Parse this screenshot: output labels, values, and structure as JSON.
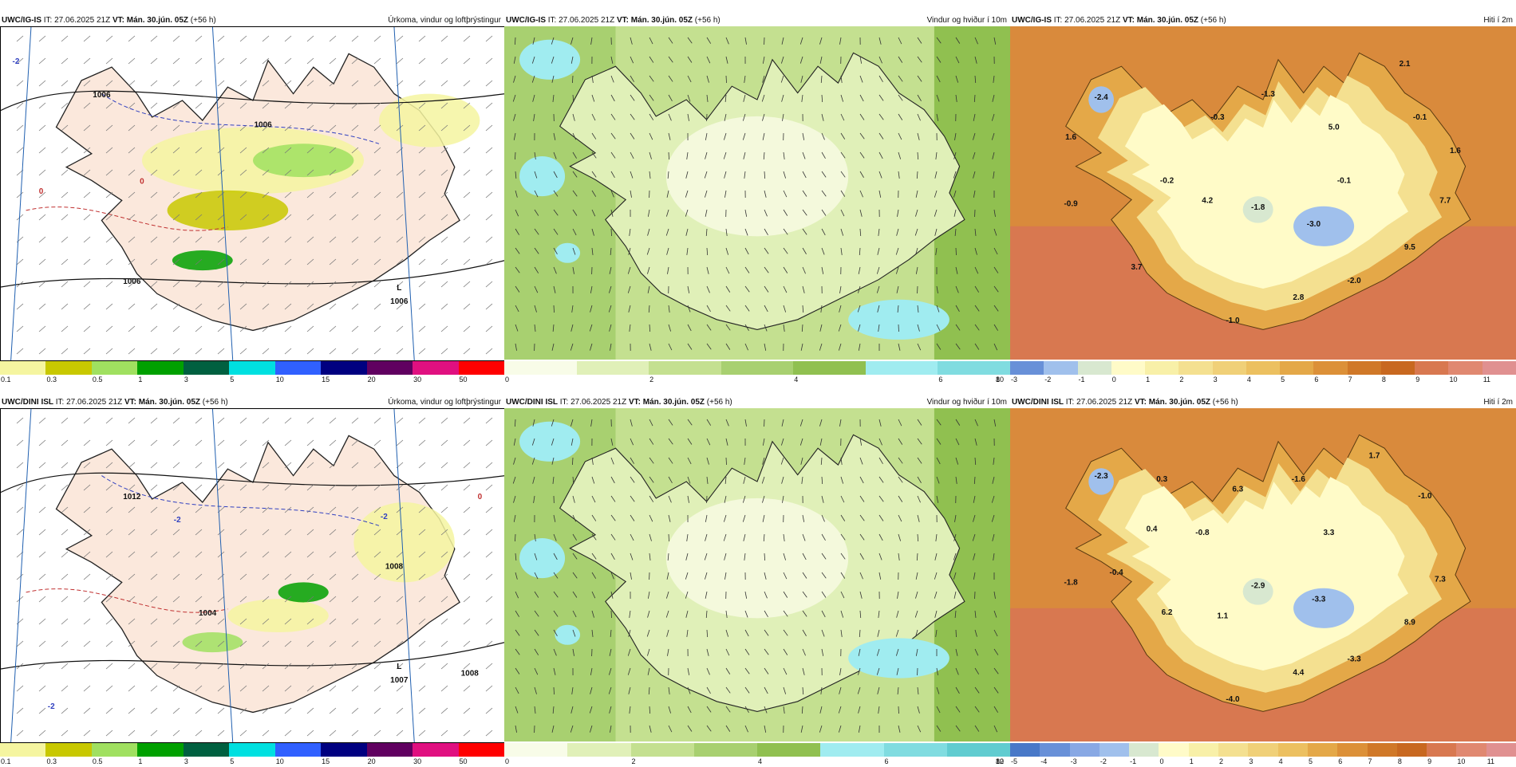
{
  "rows": [
    {
      "model": "UWC/IG-IS",
      "it": "IT: 27.06.2025 21Z",
      "vt_label": "VT:",
      "vt_value": "Mán. 30.jún. 05Z",
      "lead": "(+56 h)",
      "panels": [
        {
          "kind": "precip",
          "name": "Úrkoma, vindur og loftþrýstingur",
          "map_labels": [
            "1006",
            "1006",
            "1006",
            "L",
            "1006",
            "0",
            "0",
            "-2"
          ],
          "colorbar": [
            "#f5f5a0",
            "#c8c800",
            "#a0e060",
            "#00a000",
            "#006040",
            "#00e0e0",
            "#3060ff",
            "#000080",
            "#600060",
            "#e01080",
            "#ff0000"
          ],
          "ticks": [
            "0.1",
            "0.3",
            "0.5",
            "1",
            "3",
            "5",
            "10",
            "15",
            "20",
            "30",
            "50"
          ]
        },
        {
          "kind": "wind",
          "name": "Vindur og hviður í 10m",
          "colorbar": [
            "#f8fce8",
            "#e0f0b8",
            "#c4e090",
            "#a8d070",
            "#90c050",
            "#a0ecf0",
            "#80dce0"
          ],
          "ticks": [
            "0",
            "2",
            "4",
            "6",
            "8",
            "10"
          ]
        },
        {
          "kind": "temp",
          "name": "Hiti í 2m",
          "map_labels": [
            "2.1",
            "-2.4",
            "-1.3",
            "-0.3",
            "5.0",
            "-0.1",
            "1.6",
            "1.6",
            "-0.1",
            "-0.2",
            "4.2",
            "-1.8",
            "-0.9",
            "7.7",
            "-3.0",
            "9.5",
            "3.7",
            "-2.0",
            "2.8",
            "-1.0"
          ],
          "colorbar": [
            "#6890d8",
            "#a0c0ec",
            "#d8e8d0",
            "#fffbc8",
            "#f8f0a8",
            "#f4e090",
            "#f0d078",
            "#ecc060",
            "#e4a848",
            "#dc9038",
            "#d07828",
            "#c86820",
            "#d87850",
            "#e08870",
            "#e09090"
          ],
          "ticks": [
            "-3",
            "-2",
            "-1",
            "0",
            "1",
            "2",
            "3",
            "4",
            "5",
            "6",
            "7",
            "8",
            "9",
            "10",
            "11"
          ]
        }
      ]
    },
    {
      "model": "UWC/DINI ISL",
      "it": "IT: 27.06.2025 21Z",
      "vt_label": "VT:",
      "vt_value": "Mán. 30.jún. 05Z",
      "lead": "(+56 h)",
      "panels": [
        {
          "kind": "precip",
          "name": "Úrkoma, vindur og loftþrýstingur",
          "map_labels": [
            "1012",
            "-2",
            "-2",
            "1008",
            "1004",
            "L",
            "1007",
            "1008",
            "0",
            "-2"
          ],
          "colorbar": [
            "#f5f5a0",
            "#c8c800",
            "#a0e060",
            "#00a000",
            "#006040",
            "#00e0e0",
            "#3060ff",
            "#000080",
            "#600060",
            "#e01080",
            "#ff0000"
          ],
          "ticks": [
            "0.1",
            "0.3",
            "0.5",
            "1",
            "3",
            "5",
            "10",
            "15",
            "20",
            "30",
            "50"
          ]
        },
        {
          "kind": "wind",
          "name": "Vindur og hviður í 10m",
          "colorbar": [
            "#f8fce8",
            "#e0f0b8",
            "#c4e090",
            "#a8d070",
            "#90c050",
            "#a0ecf0",
            "#80dce0",
            "#60ccd0"
          ],
          "ticks": [
            "0",
            "2",
            "4",
            "6",
            "8",
            "10",
            "12"
          ]
        },
        {
          "kind": "temp",
          "name": "Hiti í 2m",
          "map_labels": [
            "-2.3",
            "0.3",
            "1.7",
            "6.3",
            "-1.6",
            "-1.0",
            "0.4",
            "-0.8",
            "3.3",
            "-0.4",
            "-1.8",
            "7.3",
            "6.2",
            "1.1",
            "-2.9",
            "-3.3",
            "8.9",
            "4.4",
            "-3.3",
            "-4.0"
          ],
          "colorbar": [
            "#4878c8",
            "#6890d8",
            "#88a8e4",
            "#a0c0ec",
            "#d8e8d0",
            "#fffbc8",
            "#f8f0a8",
            "#f4e090",
            "#f0d078",
            "#ecc060",
            "#e4a848",
            "#dc9038",
            "#d07828",
            "#c86820",
            "#d87850",
            "#e08870",
            "#e09090"
          ],
          "ticks": [
            "-5",
            "-4",
            "-3",
            "-2",
            "-1",
            "0",
            "1",
            "2",
            "3",
            "4",
            "5",
            "6",
            "7",
            "8",
            "9",
            "10",
            "11"
          ]
        }
      ]
    }
  ]
}
